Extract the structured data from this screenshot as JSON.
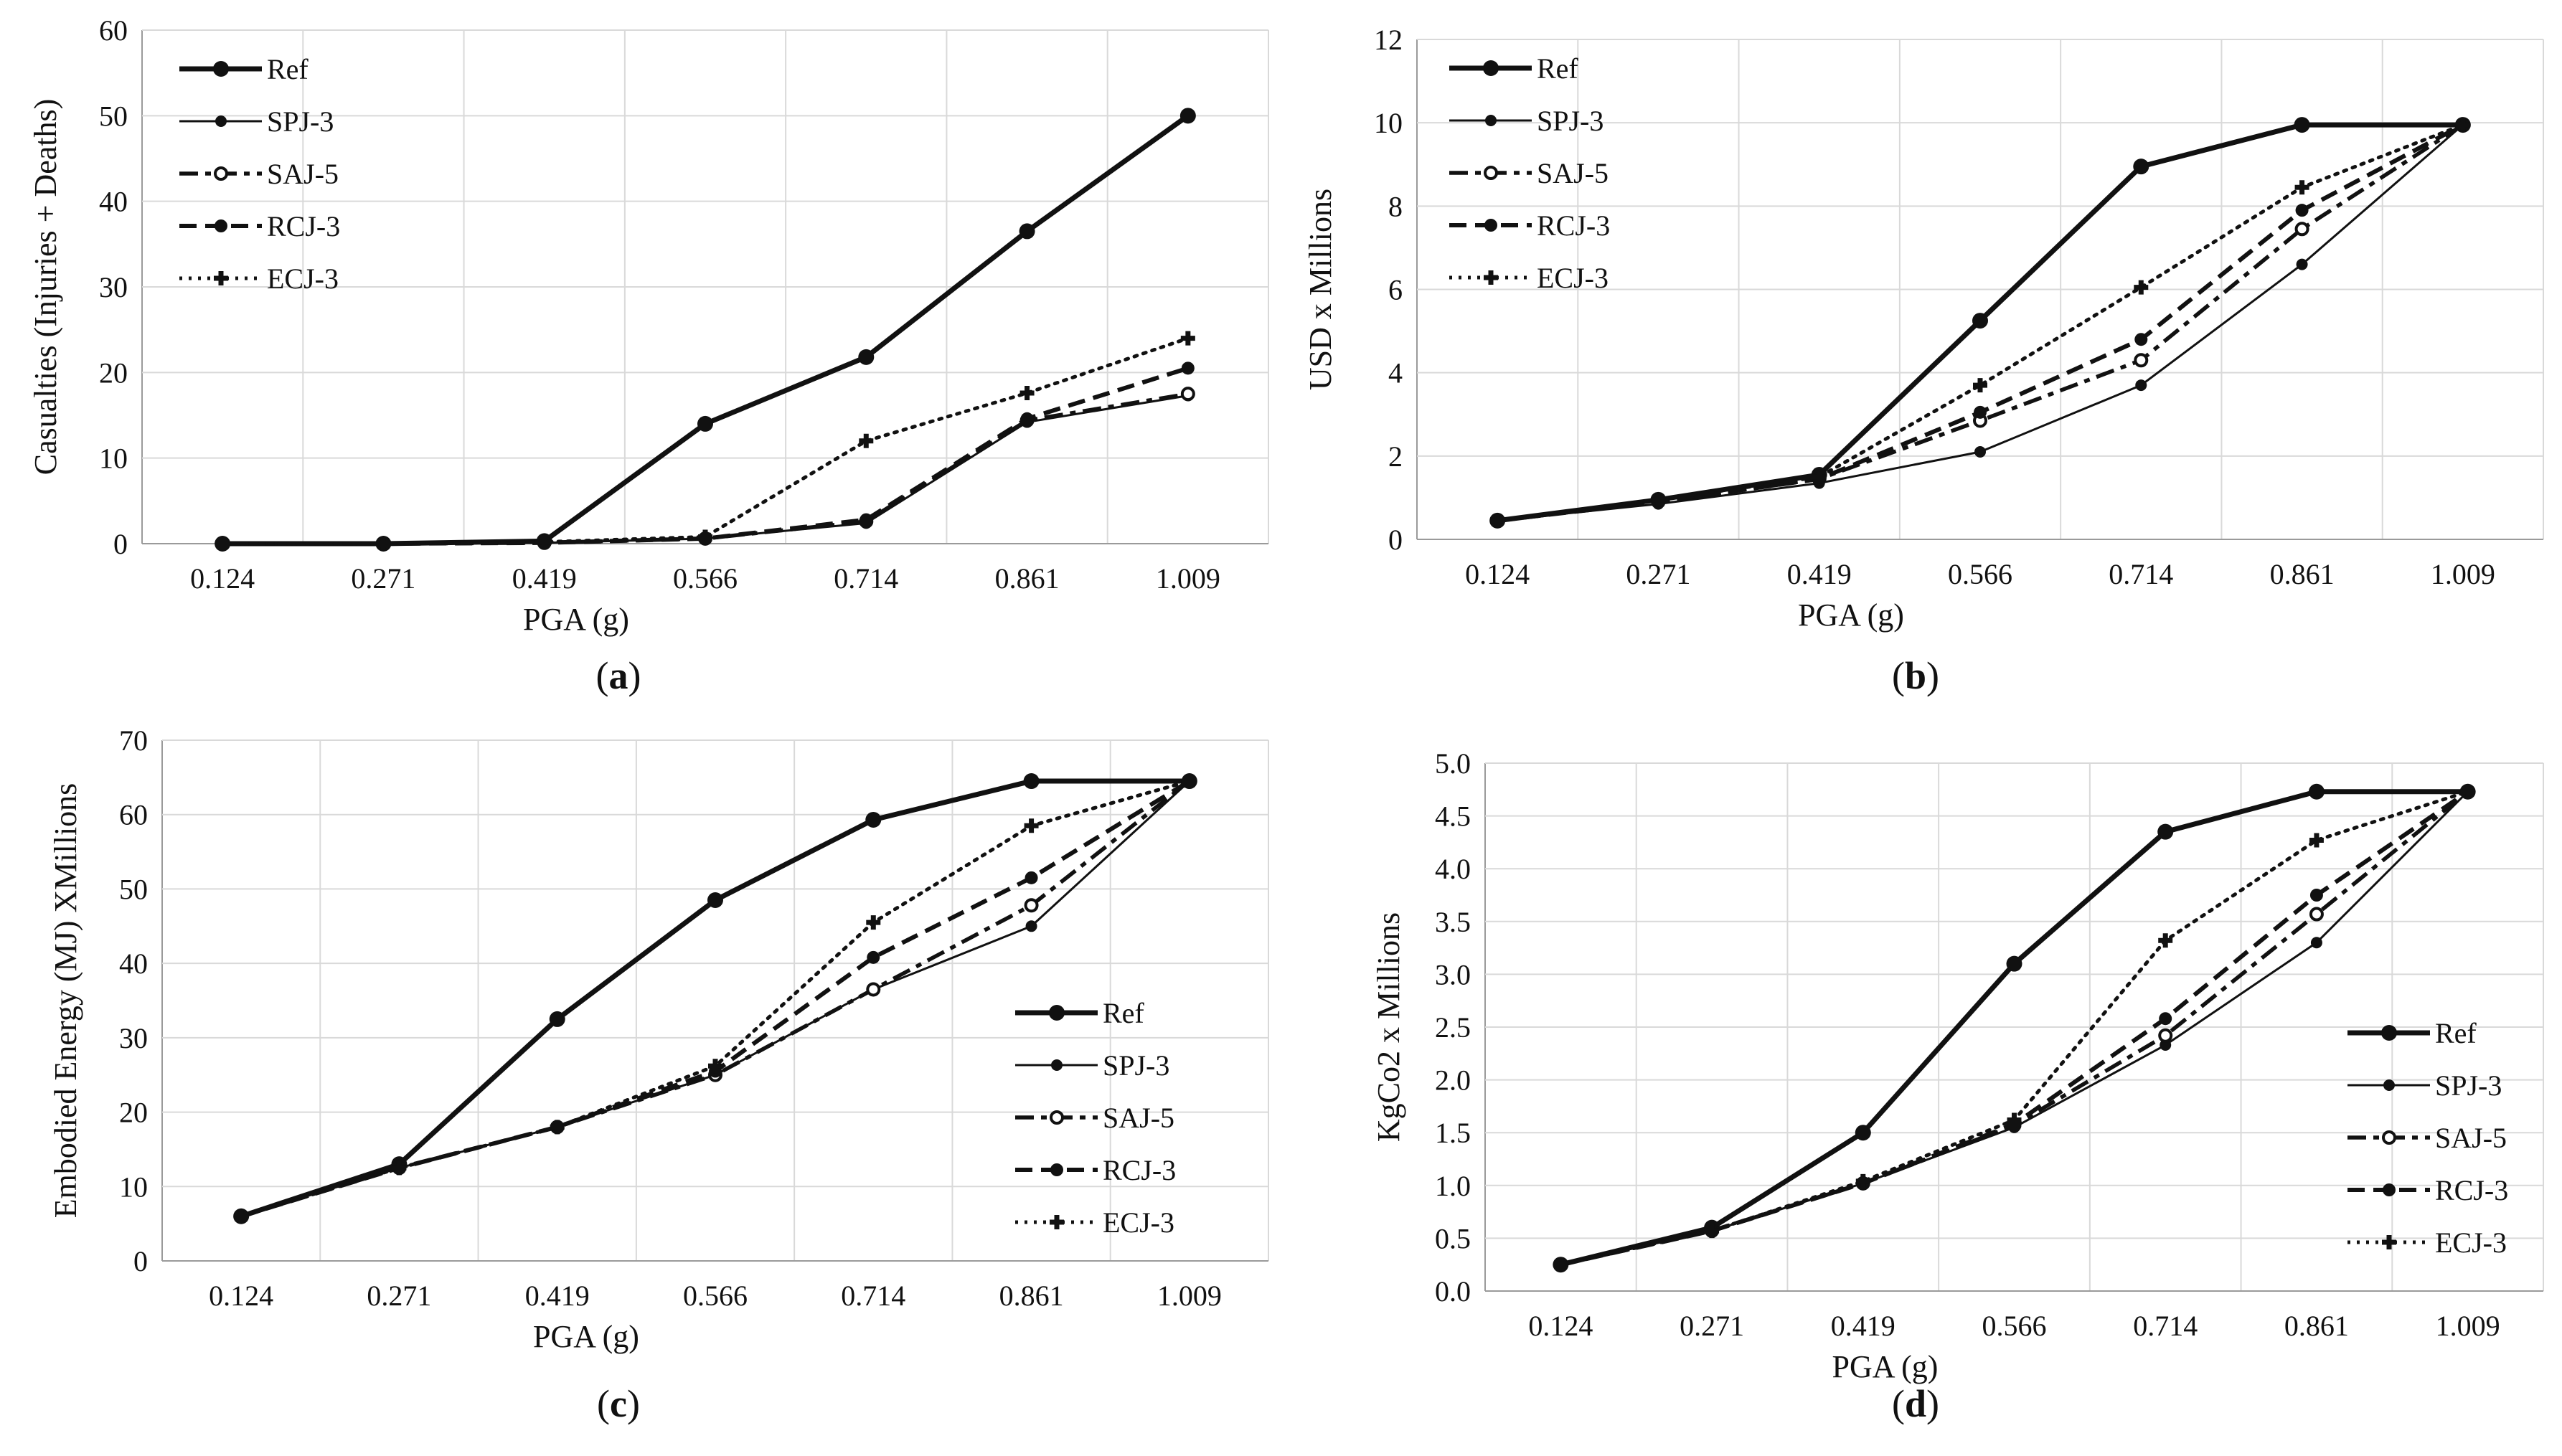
{
  "chart_data": [
    {
      "type": "line",
      "panel_label": "a",
      "title": "",
      "xlabel": "PGA (g)",
      "ylabel": "Casualties (Injuries + Deaths)",
      "categories": [
        "0.124",
        "0.271",
        "0.419",
        "0.566",
        "0.714",
        "0.861",
        "1.009"
      ],
      "ylim": [
        0,
        60
      ],
      "yticks": [
        "0",
        "10",
        "20",
        "30",
        "40",
        "50",
        "60"
      ],
      "legend_position": "top-left",
      "series": [
        {
          "name": "Ref",
          "values": [
            0,
            0,
            0.3,
            14,
            21.8,
            36.5,
            50
          ]
        },
        {
          "name": "SPJ-3",
          "values": [
            0,
            0,
            0.1,
            0.6,
            2.4,
            14.2,
            17.3
          ]
        },
        {
          "name": "SAJ-5",
          "values": [
            0,
            0,
            0.1,
            0.6,
            2.6,
            14.4,
            17.5
          ]
        },
        {
          "name": "RCJ-3",
          "values": [
            0,
            0,
            0.1,
            0.6,
            2.8,
            14.6,
            20.5
          ]
        },
        {
          "name": "ECJ-3",
          "values": [
            0,
            0,
            0.2,
            0.8,
            12,
            17.6,
            24
          ]
        }
      ]
    },
    {
      "type": "line",
      "panel_label": "b",
      "title": "",
      "xlabel": "PGA (g)",
      "ylabel": "USD x Millions",
      "categories": [
        "0.124",
        "0.271",
        "0.419",
        "0.566",
        "0.714",
        "0.861",
        "1.009"
      ],
      "ylim": [
        0,
        12
      ],
      "yticks": [
        "0",
        "2",
        "4",
        "6",
        "8",
        "10",
        "12"
      ],
      "legend_position": "top-left",
      "series": [
        {
          "name": "Ref",
          "values": [
            0.45,
            0.95,
            1.55,
            5.25,
            8.95,
            9.95,
            9.95
          ]
        },
        {
          "name": "SPJ-3",
          "values": [
            0.45,
            0.85,
            1.35,
            2.1,
            3.7,
            6.6,
            9.95
          ]
        },
        {
          "name": "SAJ-5",
          "values": [
            0.45,
            0.9,
            1.45,
            2.85,
            4.3,
            7.45,
            9.95
          ]
        },
        {
          "name": "RCJ-3",
          "values": [
            0.45,
            0.9,
            1.45,
            3.05,
            4.8,
            7.9,
            9.95
          ]
        },
        {
          "name": "ECJ-3",
          "values": [
            0.45,
            0.95,
            1.5,
            3.7,
            6.05,
            8.45,
            9.95
          ]
        }
      ]
    },
    {
      "type": "line",
      "panel_label": "c",
      "title": "",
      "xlabel": "PGA (g)",
      "ylabel": "Embodied Energy (MJ) XMillions",
      "categories": [
        "0.124",
        "0.271",
        "0.419",
        "0.566",
        "0.714",
        "0.861",
        "1.009"
      ],
      "ylim": [
        0,
        70
      ],
      "yticks": [
        "0",
        "10",
        "20",
        "30",
        "40",
        "50",
        "60",
        "70"
      ],
      "legend_position": "bottom-right",
      "series": [
        {
          "name": "Ref",
          "values": [
            6,
            13,
            32.5,
            48.5,
            59.3,
            64.5,
            64.5
          ]
        },
        {
          "name": "SPJ-3",
          "values": [
            6,
            12.5,
            18,
            25,
            36.5,
            45,
            64.5
          ]
        },
        {
          "name": "SAJ-5",
          "values": [
            6,
            12.5,
            18,
            25,
            36.5,
            47.8,
            64.5
          ]
        },
        {
          "name": "RCJ-3",
          "values": [
            6,
            12.5,
            18,
            25.5,
            40.8,
            51.5,
            64.5
          ]
        },
        {
          "name": "ECJ-3",
          "values": [
            6,
            12.5,
            18,
            26.2,
            45.5,
            58.5,
            64.5
          ]
        }
      ]
    },
    {
      "type": "line",
      "panel_label": "d",
      "title": "",
      "xlabel": "PGA (g)",
      "ylabel": "KgCo2 x Millions",
      "categories": [
        "0.124",
        "0.271",
        "0.419",
        "0.566",
        "0.714",
        "0.861",
        "1.009"
      ],
      "ylim": [
        0,
        5
      ],
      "yticks": [
        "0.0",
        "0.5",
        "1.0",
        "1.5",
        "2.0",
        "2.5",
        "3.0",
        "3.5",
        "4.0",
        "4.5",
        "5.0"
      ],
      "legend_position": "bottom-right",
      "series": [
        {
          "name": "Ref",
          "values": [
            0.25,
            0.6,
            1.5,
            3.1,
            4.35,
            4.73,
            4.73
          ]
        },
        {
          "name": "SPJ-3",
          "values": [
            0.25,
            0.57,
            1.02,
            1.55,
            2.33,
            3.3,
            4.73
          ]
        },
        {
          "name": "SAJ-5",
          "values": [
            0.25,
            0.57,
            1.02,
            1.57,
            2.42,
            3.57,
            4.73
          ]
        },
        {
          "name": "RCJ-3",
          "values": [
            0.25,
            0.57,
            1.02,
            1.58,
            2.58,
            3.75,
            4.73
          ]
        },
        {
          "name": "ECJ-3",
          "values": [
            0.25,
            0.57,
            1.04,
            1.62,
            3.32,
            4.27,
            4.73
          ]
        }
      ]
    }
  ]
}
